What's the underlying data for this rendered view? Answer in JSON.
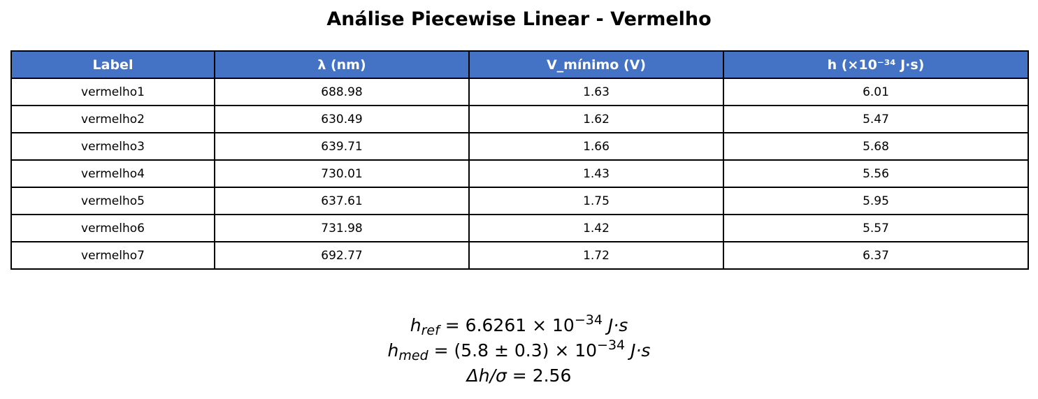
{
  "chart_data": {
    "type": "table",
    "title": "Análise Piecewise Linear - Vermelho",
    "columns": [
      "Label",
      "λ (nm)",
      "V_mínimo (V)",
      "h (×10⁻³⁴ J·s)"
    ],
    "rows": [
      [
        "vermelho1",
        "688.98",
        "1.63",
        "6.01"
      ],
      [
        "vermelho2",
        "630.49",
        "1.62",
        "5.47"
      ],
      [
        "vermelho3",
        "639.71",
        "1.66",
        "5.68"
      ],
      [
        "vermelho4",
        "730.01",
        "1.43",
        "5.56"
      ],
      [
        "vermelho5",
        "637.61",
        "1.75",
        "5.95"
      ],
      [
        "vermelho6",
        "731.98",
        "1.42",
        "5.57"
      ],
      [
        "vermelho7",
        "692.77",
        "1.72",
        "6.37"
      ]
    ],
    "header_color": "#4472c4"
  },
  "formulas": {
    "h_ref": {
      "symbol": "h",
      "subscript": "ref",
      "value": "= 6.6261 × 10",
      "exponent": "−34",
      "unit": "J·s"
    },
    "h_med": {
      "symbol": "h",
      "subscript": "med",
      "value": "= (5.8 ± 0.3) × 10",
      "exponent": "−34",
      "unit": "J·s"
    },
    "delta": {
      "expression": "Δh/σ",
      "value": "= 2.56"
    }
  }
}
